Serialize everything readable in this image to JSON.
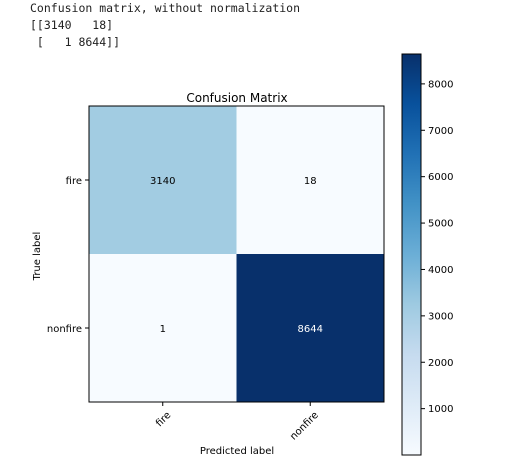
{
  "console": {
    "lines": [
      "Confusion matrix, without normalization",
      "[[3140   18]",
      " [   1 8644]]"
    ]
  },
  "chart_data": {
    "type": "heatmap",
    "title": "Confusion Matrix",
    "xlabel": "Predicted label",
    "ylabel": "True label",
    "x_categories": [
      "fire",
      "nonfire"
    ],
    "y_categories": [
      "fire",
      "nonfire"
    ],
    "values": [
      [
        3140,
        18
      ],
      [
        1,
        8644
      ]
    ],
    "colormap": "Blues",
    "colorbar": {
      "min": 1,
      "max": 8644,
      "ticks": [
        1000,
        2000,
        3000,
        4000,
        5000,
        6000,
        7000,
        8000
      ],
      "tick_labels": [
        "1000",
        "2000",
        "3000",
        "4000",
        "5000",
        "6000",
        "7000",
        "8000"
      ]
    },
    "grid": false
  }
}
